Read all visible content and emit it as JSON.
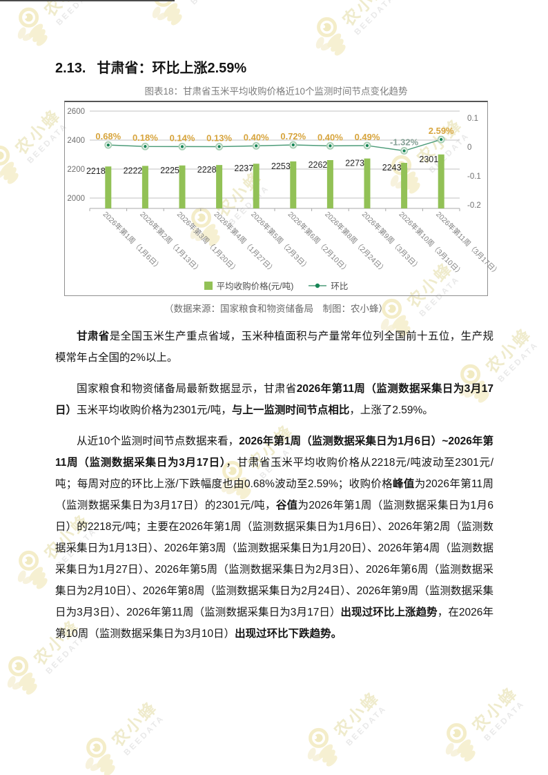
{
  "page": {
    "section_number": "2.13.",
    "section_title": "甘肃省：环比上涨2.59%",
    "watermark": {
      "name": "农小蜂",
      "brand": "BEEDATA"
    }
  },
  "chart": {
    "caption": "图表18：甘肃省玉米平均收购价格近10个监测时间节点变化趋势",
    "source_note": "（数据来源：国家粮食和物资储备局　制图：农小蜂）",
    "legend": [
      {
        "type": "bar",
        "label": "平均收购价格(元/吨)"
      },
      {
        "type": "line",
        "label": "环比"
      }
    ]
  },
  "chart_data": {
    "type": "bar+line",
    "title": "图表18：甘肃省玉米平均收购价格近10个监测时间节点变化趋势",
    "categories": [
      "2026年第1周（1月6日）",
      "2026年第2周（1月13日）",
      "2026年第3周（1月20日）",
      "2026年第4周（1月27日）",
      "2026年第5周（2月3日）",
      "2026年第6周（2月10日）",
      "2026年第8周（2月24日）",
      "2026年第9周（3月3日）",
      "2026年第10周（3月10日）",
      "2026年第11周（3月17日）"
    ],
    "series": [
      {
        "name": "平均收购价格(元/吨)",
        "type": "bar",
        "values": [
          2218,
          2222,
          2225,
          2228,
          2237,
          2253,
          2262,
          2273,
          2243,
          2301
        ]
      },
      {
        "name": "环比",
        "type": "line",
        "values_percent": [
          0.68,
          0.18,
          0.14,
          0.13,
          0.4,
          0.72,
          0.4,
          0.49,
          -1.32,
          2.59
        ],
        "labels": [
          "0.68%",
          "0.18%",
          "0.14%",
          "0.13%",
          "0.40%",
          "0.72%",
          "0.40%",
          "0.49%",
          "-1.32%",
          "2.59%"
        ]
      }
    ],
    "left_axis": {
      "ticks": [
        2000,
        2200,
        2400,
        2600
      ],
      "range": [
        1900,
        2650
      ]
    },
    "right_axis": {
      "ticks": [
        -0.2,
        -0.1,
        0,
        0.1
      ],
      "range": [
        -0.22,
        0.12
      ]
    },
    "legend_position": "bottom",
    "grid": true,
    "colors": {
      "bar": "#92C156",
      "line": "#4B9B78",
      "point_core": "#178556",
      "point_ring": "#A9CFB5",
      "pct_label_positive": "#D7A43C",
      "pct_label_negative": "#85A095",
      "value_label": "#262626",
      "axis_label": "#6F6F6F",
      "x_label": "#818181",
      "gridline": "#C2C2C2",
      "axis_line": "#A8A8A8"
    }
  },
  "paragraphs": [
    {
      "runs": [
        {
          "t": "甘肃省",
          "b": true
        },
        {
          "t": "是全国玉米生产重点省域，玉米种植面积与产量常年位列全国前十五位，生产规模常年占全国的2%以上。",
          "b": false
        }
      ]
    },
    {
      "runs": [
        {
          "t": "国家粮食和物资储备局最新数据显示，甘肃省",
          "b": false
        },
        {
          "t": "2026年第11周（监测数据采集日为3月17日）",
          "b": true
        },
        {
          "t": "玉米平均收购价格为2301元/吨，",
          "b": false
        },
        {
          "t": "与上一监测时间节点相比",
          "b": true
        },
        {
          "t": "，上涨了2.59%。",
          "b": false
        }
      ]
    },
    {
      "runs": [
        {
          "t": "从近10个监测时间节点数据来看，",
          "b": false
        },
        {
          "t": "2026年第1周（监测数据采集日为1月6日）~2026年第11周（监测数据采集日为3月17日）",
          "b": true
        },
        {
          "t": "，甘肃省玉米平均收购价格从2218元/吨波动至2301元/吨；每周对应的环比上涨/下跌幅度也由0.68%波动至2.59%；收购价格",
          "b": false
        },
        {
          "t": "峰值",
          "b": true
        },
        {
          "t": "为2026年第11周（监测数据采集日为3月17日）的2301元/吨，",
          "b": false
        },
        {
          "t": "谷值",
          "b": true
        },
        {
          "t": "为2026年第1周（监测数据采集日为1月6日）的2218元/吨；主要在2026年第1周（监测数据采集日为1月6日）、2026年第2周（监测数据采集日为1月13日）、2026年第3周（监测数据采集日为1月20日）、2026年第4周（监测数据采集日为1月27日）、2026年第5周（监测数据采集日为2月3日）、2026年第6周（监测数据采集日为2月10日）、2026年第8周（监测数据采集日为2月24日）、2026年第9周（监测数据采集日为3月3日）、2026年第11周（监测数据采集日为3月17日）",
          "b": false
        },
        {
          "t": "出现过环比上涨趋势",
          "b": true
        },
        {
          "t": "，在2026年第10周（监测数据采集日为3月10日）",
          "b": false
        },
        {
          "t": "出现过环比下跌趋势。",
          "b": true
        }
      ]
    }
  ]
}
